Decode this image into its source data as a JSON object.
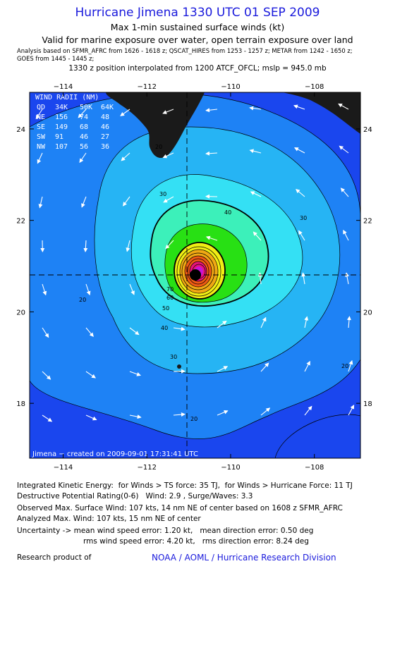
{
  "header": {
    "title": "Hurricane Jimena 1330 UTC 01 SEP 2009",
    "subtitle": "Max 1-min sustained surface winds (kt)",
    "valid_line": "Valid for marine exposure over water, open terrain exposure over land",
    "analysis_line1": "Analysis based on  SFMR_AFRC from 1626 - 1618 z;  QSCAT_HIRES from 1253 - 1257 z;  METAR from 1242 - 1650 z;",
    "analysis_line2": "GOES from 1445 - 1445 z;",
    "position_line": "1330 z position interpolated from 1200 ATCF_OFCL; mslp = 945.0 mb"
  },
  "map": {
    "lon_ticks": [
      "−114",
      "−112",
      "−110",
      "−108"
    ],
    "lon_values": [
      -114,
      -112,
      -110,
      -108
    ],
    "lat_ticks": [
      "24",
      "22",
      "20",
      "18"
    ],
    "lat_values": [
      24,
      22,
      20,
      18
    ],
    "lon_range": [
      -114.8,
      -106.9
    ],
    "lat_range": [
      16.8,
      24.8
    ],
    "center": {
      "lon": -110.65,
      "lat": 20.8
    },
    "contour_labels": [
      "20",
      "30",
      "40",
      "50",
      "60",
      "70"
    ],
    "land_color": "#1a1a1a",
    "colors": {
      "c10": "#1a46ee",
      "c20": "#1e82f5",
      "c30": "#26b4f4",
      "c40": "#34e0f4",
      "c50": "#3cf0ba",
      "c60": "#28e014",
      "c64": "#f0ee14",
      "c70": "#f0a814",
      "c80": "#f05a14",
      "c90": "#e8147a",
      "c100": "#c814d8"
    },
    "wind_radii_table": {
      "title": "WIND RADII (NM)",
      "header": [
        "QD",
        "34K",
        "50K",
        "64K"
      ],
      "rows": [
        [
          "NE",
          "156",
          "74",
          "48"
        ],
        [
          "SE",
          "149",
          "68",
          "46"
        ],
        [
          "SW",
          "91",
          "46",
          "27"
        ],
        [
          "NW",
          "107",
          "56",
          "36"
        ]
      ]
    },
    "credit": "Jimena − created on 2009-09-01 17:31:41 UTC"
  },
  "footer": {
    "ike": "Integrated Kinetic Energy:  for Winds > TS force: 35 TJ,  for Winds > Hurricane Force: 11 TJ",
    "dpr": "Destructive Potential Rating(0-6)   Wind: 2.9 , Surge/Waves: 3.3",
    "observed": "Observed Max. Surface Wind: 107 kts, 14 nm NE of center based on 1608 z SFMR_AFRC",
    "analyzed": "Analyzed Max. Wind: 107 kts, 15 nm NE of center",
    "uncert1": "Uncertainty -> mean wind speed error: 1.20 kt,   mean direction error: 0.50 deg",
    "uncert2": "rms wind speed error: 4.20 kt,   rms direction error: 8.24 deg",
    "research": "Research product of",
    "org": "NOAA / AOML / Hurricane Research Division"
  }
}
